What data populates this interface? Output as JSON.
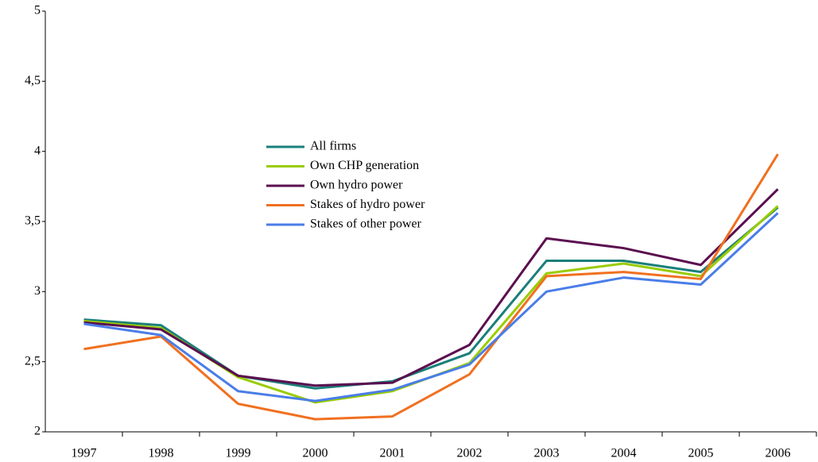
{
  "chart_data": {
    "type": "line",
    "categories": [
      "1997",
      "1998",
      "1999",
      "2000",
      "2001",
      "2002",
      "2003",
      "2004",
      "2005",
      "2006"
    ],
    "series": [
      {
        "name": "All firms",
        "color": "#1a7f7a",
        "values": [
          2.8,
          2.76,
          2.4,
          2.31,
          2.36,
          2.56,
          3.22,
          3.22,
          3.14,
          3.6
        ]
      },
      {
        "name": "Own CHP generation",
        "color": "#99cc00",
        "values": [
          2.79,
          2.74,
          2.39,
          2.21,
          2.29,
          2.49,
          3.13,
          3.2,
          3.11,
          3.61
        ]
      },
      {
        "name": "Own hydro power",
        "color": "#5b0f4f",
        "values": [
          2.78,
          2.73,
          2.4,
          2.33,
          2.35,
          2.62,
          3.38,
          3.31,
          3.19,
          3.73
        ]
      },
      {
        "name": "Stakes of hydro power",
        "color": "#f07020",
        "values": [
          2.59,
          2.68,
          2.2,
          2.09,
          2.11,
          2.41,
          3.11,
          3.14,
          3.09,
          3.98
        ]
      },
      {
        "name": "Stakes of other power",
        "color": "#4a7de8",
        "values": [
          2.77,
          2.69,
          2.29,
          2.22,
          2.3,
          2.48,
          3.0,
          3.1,
          3.05,
          3.56
        ]
      }
    ],
    "ylim": [
      2,
      5
    ],
    "yticks": [
      2,
      {
        "value": 2.5,
        "label": "2,5"
      },
      3,
      {
        "value": 3.5,
        "label": "3,5"
      },
      4,
      {
        "value": 4.5,
        "label": "4,5"
      },
      5
    ],
    "grid": false
  }
}
